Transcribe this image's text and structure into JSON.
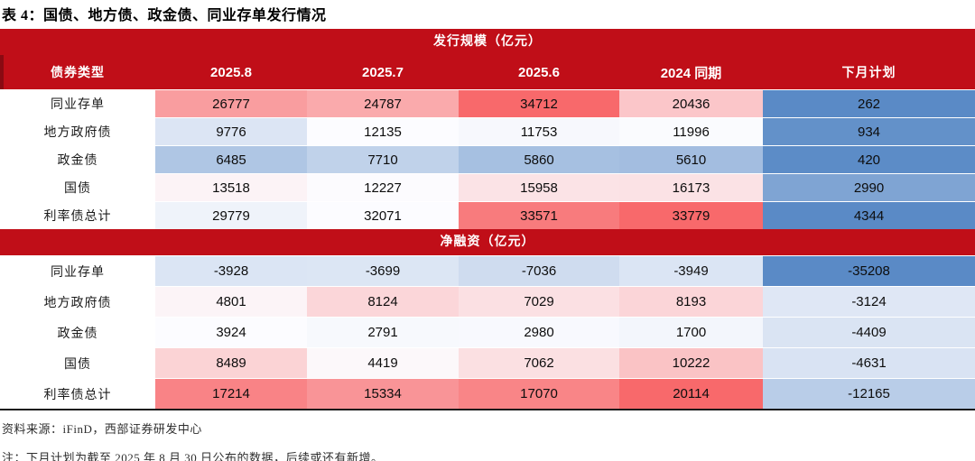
{
  "title": "表 4：国债、地方债、政金债、同业存单发行情况",
  "colors": {
    "band_red": "#C00E18",
    "header_left_strip": "#8A0A12",
    "scale_max_red": "#F8696B",
    "scale_mid_white": "#FCFCFF",
    "scale_min_blue": "#5A8AC6",
    "bottom_border": "#1A1A1A"
  },
  "table": {
    "columns": [
      "债券类型",
      "2025.8",
      "2025.7",
      "2025.6",
      "2024 同期",
      "下月计划"
    ],
    "sections": [
      {
        "band_label": "发行规模（亿元）",
        "rows": [
          {
            "label": "同业存单",
            "cells": [
              {
                "v": "26777",
                "bg": "#F99D9F"
              },
              {
                "v": "24787",
                "bg": "#FAAAAC"
              },
              {
                "v": "34712",
                "bg": "#F8696B"
              },
              {
                "v": "20436",
                "bg": "#FBC6C9"
              },
              {
                "v": "262",
                "bg": "#5A8AC6"
              }
            ]
          },
          {
            "label": "地方政府债",
            "cells": [
              {
                "v": "9776",
                "bg": "#DCE5F4"
              },
              {
                "v": "12135",
                "bg": "#FCFCFF"
              },
              {
                "v": "11753",
                "bg": "#F7F8FD"
              },
              {
                "v": "11996",
                "bg": "#FAFBFE"
              },
              {
                "v": "934",
                "bg": "#6391C9"
              }
            ]
          },
          {
            "label": "政金债",
            "cells": [
              {
                "v": "6485",
                "bg": "#AFC6E4"
              },
              {
                "v": "7710",
                "bg": "#C0D2EA"
              },
              {
                "v": "5860",
                "bg": "#A6C0E1"
              },
              {
                "v": "5610",
                "bg": "#A3BDE0"
              },
              {
                "v": "420",
                "bg": "#5C8CC7"
              }
            ]
          },
          {
            "label": "国债",
            "cells": [
              {
                "v": "13518",
                "bg": "#FCF3F6"
              },
              {
                "v": "12227",
                "bg": "#FCFBFE"
              },
              {
                "v": "15958",
                "bg": "#FBE3E6"
              },
              {
                "v": "16173",
                "bg": "#FBE2E5"
              },
              {
                "v": "2990",
                "bg": "#7FA4D3"
              }
            ]
          },
          {
            "label": "利率债总计",
            "cells": [
              {
                "v": "29779",
                "bg": "#EFF3FA"
              },
              {
                "v": "32071",
                "bg": "#FCFCFF"
              },
              {
                "v": "33571",
                "bg": "#F87B7D"
              },
              {
                "v": "33779",
                "bg": "#F8696B"
              },
              {
                "v": "4344",
                "bg": "#5A8AC6"
              }
            ]
          }
        ]
      },
      {
        "band_label": "净融资（亿元）",
        "rows": [
          {
            "label": "同业存单",
            "cells": [
              {
                "v": "-3928",
                "bg": "#DBE5F4"
              },
              {
                "v": "-3699",
                "bg": "#DCE6F4"
              },
              {
                "v": "-7036",
                "bg": "#CFDCEF"
              },
              {
                "v": "-3949",
                "bg": "#DBE5F4"
              },
              {
                "v": "-35208",
                "bg": "#5A8AC6"
              }
            ]
          },
          {
            "label": "地方政府债",
            "cells": [
              {
                "v": "4801",
                "bg": "#FCF4F7"
              },
              {
                "v": "8124",
                "bg": "#FBD6D9"
              },
              {
                "v": "7029",
                "bg": "#FBE0E3"
              },
              {
                "v": "8193",
                "bg": "#FBD5D8"
              },
              {
                "v": "-3124",
                "bg": "#DFE7F5"
              }
            ]
          },
          {
            "label": "政金债",
            "cells": [
              {
                "v": "3924",
                "bg": "#FCFCFF"
              },
              {
                "v": "2791",
                "bg": "#F7F9FD"
              },
              {
                "v": "2980",
                "bg": "#F8F9FE"
              },
              {
                "v": "1700",
                "bg": "#F3F6FC"
              },
              {
                "v": "-4409",
                "bg": "#DAE4F3"
              }
            ]
          },
          {
            "label": "国债",
            "cells": [
              {
                "v": "8489",
                "bg": "#FBD3D5"
              },
              {
                "v": "4419",
                "bg": "#FCF8FA"
              },
              {
                "v": "7062",
                "bg": "#FBE0E2"
              },
              {
                "v": "10222",
                "bg": "#FAC3C5"
              },
              {
                "v": "-4631",
                "bg": "#D9E3F3"
              }
            ]
          },
          {
            "label": "利率债总计",
            "cells": [
              {
                "v": "17214",
                "bg": "#F98386"
              },
              {
                "v": "15334",
                "bg": "#F99497"
              },
              {
                "v": "17070",
                "bg": "#F98587"
              },
              {
                "v": "20114",
                "bg": "#F8696B"
              },
              {
                "v": "-12165",
                "bg": "#B9CDE8"
              }
            ]
          }
        ]
      }
    ]
  },
  "footer": {
    "source": "资料来源：iFinD，西部证券研发中心",
    "note": "注：下月计划为截至 2025 年 8 月 30 日公布的数据，后续或还有新增。"
  }
}
